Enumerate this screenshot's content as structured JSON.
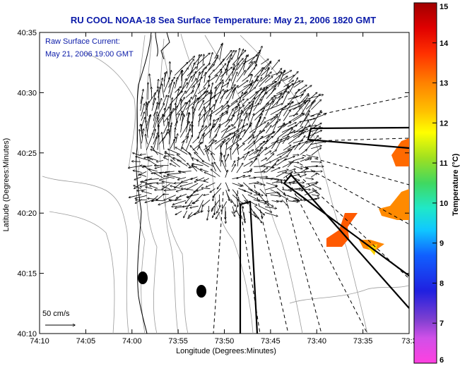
{
  "chart_data": {
    "type": "map",
    "title": "RU COOL  NOAA-18  Sea Surface Temperature:  May 21, 2006 1820 GMT",
    "annotation": {
      "line1": "Raw Surface Current:",
      "line2": "May 21, 2006 19:00 GMT"
    },
    "scale_label": "50 cm/s",
    "xlabel": "Longitude (Degrees:Minutes)",
    "ylabel": "Latitude (Degrees:Minutes)",
    "x_ticks": [
      "74:10",
      "74:05",
      "74:00",
      "73:55",
      "73:50",
      "73:45",
      "73:40",
      "73:35",
      "73:3"
    ],
    "y_ticks": [
      "40:35",
      "40:30",
      "40:25",
      "40:20",
      "40:15",
      "40:10"
    ],
    "colorbar": {
      "label": "Temperature (°C)",
      "min": 6,
      "max": 15,
      "ticks": [
        "15",
        "14",
        "13",
        "12",
        "11",
        "10",
        "9",
        "8",
        "7",
        "6"
      ]
    },
    "sst_patches": [
      {
        "color": "#ff5a00",
        "temp": 13.5
      },
      {
        "color": "#ff8800",
        "temp": 13.0
      },
      {
        "color": "#ff4a00",
        "temp": 14.0
      },
      {
        "color": "#ffd400",
        "temp": 12.0
      }
    ]
  }
}
